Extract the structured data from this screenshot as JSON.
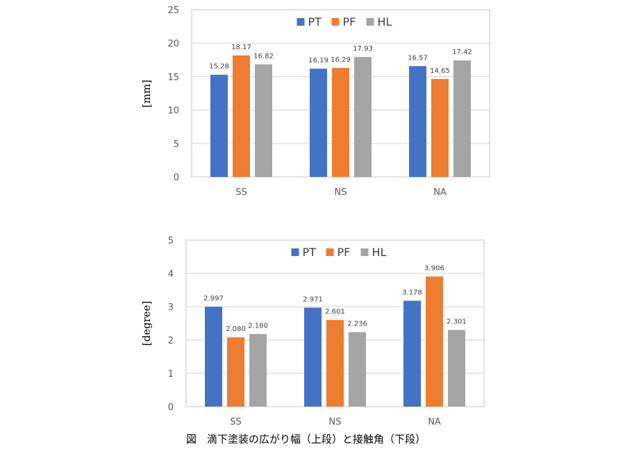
{
  "chart_data": [
    {
      "type": "bar",
      "categories": [
        "SS",
        "NS",
        "NA"
      ],
      "series": [
        {
          "name": "PT",
          "color": "#4472C4",
          "values": [
            15.28,
            16.19,
            16.57
          ]
        },
        {
          "name": "PF",
          "color": "#ED7D31",
          "values": [
            18.17,
            16.29,
            14.65
          ]
        },
        {
          "name": "HL",
          "color": "#A5A5A5",
          "values": [
            16.82,
            17.93,
            17.42
          ]
        }
      ],
      "labels": [
        [
          "15.28",
          "16.19",
          "16.57"
        ],
        [
          "18.17",
          "16.29",
          "14.65"
        ],
        [
          "16.82",
          "17.93",
          "17.42"
        ]
      ],
      "ylabel": "[mm]",
      "ylim": [
        0,
        25
      ],
      "yticks": [
        0,
        5,
        10,
        15,
        20,
        25
      ],
      "grid": true,
      "legend": "top-center"
    },
    {
      "type": "bar",
      "categories": [
        "SS",
        "NS",
        "NA"
      ],
      "series": [
        {
          "name": "PT",
          "color": "#4472C4",
          "values": [
            2.997,
            2.971,
            3.178
          ]
        },
        {
          "name": "PF",
          "color": "#ED7D31",
          "values": [
            2.08,
            2.601,
            3.906
          ]
        },
        {
          "name": "HL",
          "color": "#A5A5A5",
          "values": [
            2.18,
            2.236,
            2.301
          ]
        }
      ],
      "labels": [
        [
          "2.997",
          "2.971",
          "3.178"
        ],
        [
          "2.080",
          "2.601",
          "3.906"
        ],
        [
          "2.180",
          "2.236",
          "2.301"
        ]
      ],
      "ylabel": "[degree]",
      "ylim": [
        0,
        5
      ],
      "yticks": [
        0,
        1,
        2,
        3,
        4,
        5
      ],
      "grid": true,
      "legend": "top-center"
    }
  ],
  "caption": "図　滴下塗装の広がり幅（上段）と接触角（下段）"
}
